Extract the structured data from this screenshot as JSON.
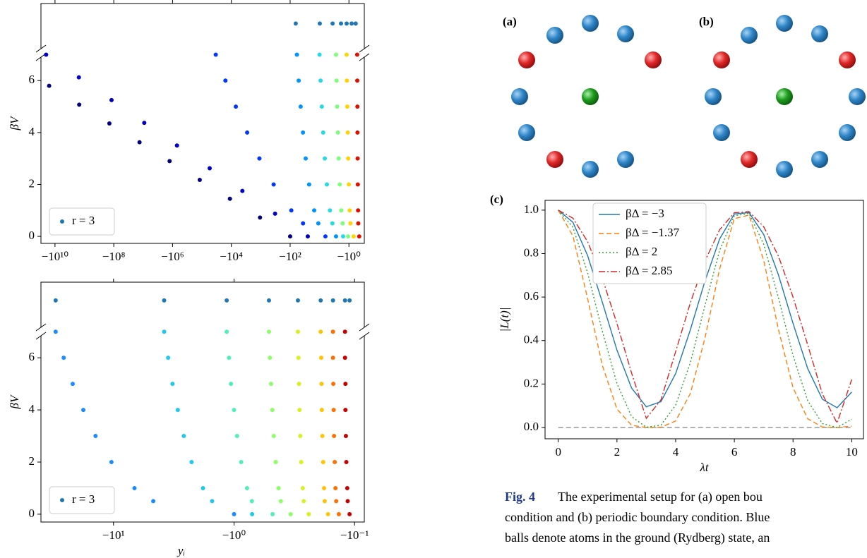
{
  "chart_data": [
    {
      "type": "scatter",
      "xscale": "log",
      "ylabel": "βV",
      "xlim": [
        -30000000000,
        -0.3
      ],
      "ylim": [
        -0.27,
        8.97
      ],
      "xticks": [
        {
          "value": -10000000000,
          "label": "−10¹⁰"
        },
        {
          "value": -100000000,
          "label": "−10⁸"
        },
        {
          "value": -1000000,
          "label": "−10⁶"
        },
        {
          "value": -10000,
          "label": "−10⁴"
        },
        {
          "value": -100,
          "label": "−10²"
        },
        {
          "value": -1,
          "label": "−10⁰"
        }
      ],
      "yticks": [
        0,
        2,
        4,
        6
      ],
      "legend": "lower left",
      "series": [
        {
          "color": "#00007f",
          "x": [
            -100,
            -1060,
            -11200,
            -119000,
            -1260000,
            -13300000,
            -141000000,
            -1500000000,
            -15800000000
          ],
          "values": [
            0,
            0.725,
            1.45,
            2.175,
            2.9,
            3.625,
            4.35,
            5.075,
            5.8
          ]
        },
        {
          "color": "#0000c8",
          "x": [
            -25.1,
            -326,
            -4220,
            -54600,
            -708000,
            -9170000,
            -119000000,
            -1540000000,
            -20000000000
          ],
          "values": [
            0,
            0.875,
            1.75,
            2.625,
            3.5,
            4.375,
            5.25,
            6.125,
            7
          ]
        },
        {
          "color": "#0038ff",
          "x": [
            -6.31,
            -36.4,
            -91.2,
            -364,
            -1110,
            -2900,
            -7030,
            -15900,
            -33900
          ],
          "values": [
            0,
            0.5,
            1,
            2,
            3,
            4,
            5,
            6,
            7
          ]
        },
        {
          "color": "#0094ff",
          "x": [
            -2.75,
            -11,
            -15.2,
            -22.6,
            -29.6,
            -36.6,
            -43.9,
            -51.3,
            -58.9
          ],
          "values": [
            0,
            0.5,
            1,
            2,
            3,
            4,
            5,
            6,
            7
          ]
        },
        {
          "color": "#26d9e6",
          "x": [
            -1.58,
            -3.65,
            -4.43,
            -5.62,
            -6.62,
            -7.52,
            -8.38,
            -9.2,
            -10
          ],
          "values": [
            0,
            0.5,
            1,
            2,
            3,
            4,
            5,
            6,
            7
          ]
        },
        {
          "color": "#7dff7a",
          "x": [
            -1.07,
            -1.64,
            -1.82,
            -2.05,
            -2.23,
            -2.38,
            -2.52,
            -2.64,
            -2.75
          ],
          "values": [
            0,
            0.5,
            1,
            2,
            3,
            4,
            5,
            6,
            7
          ]
        },
        {
          "color": "#ffd400",
          "x": [
            -0.692,
            -0.889,
            -0.942,
            -1.01,
            -1.06,
            -1.1,
            -1.14,
            -1.17,
            -1.2
          ],
          "values": [
            0,
            0.5,
            1,
            2,
            3,
            4,
            5,
            6,
            7
          ]
        },
        {
          "color": "#e01000",
          "x": [
            -0.447,
            -0.481,
            -0.489,
            -0.499,
            -0.506,
            -0.512,
            -0.516,
            -0.521,
            -0.525
          ],
          "values": [
            0,
            0.5,
            1,
            2,
            3,
            4,
            5,
            6,
            7
          ]
        },
        {
          "name": "r = 3",
          "color": "#1f77b4",
          "x": [
            -64.6,
            -9.8,
            -3.6,
            -1.86,
            -1.2,
            -0.81,
            -0.59
          ],
          "values": [
            8.2,
            8.2,
            8.2,
            8.2,
            8.2,
            8.2,
            8.2
          ]
        }
      ]
    },
    {
      "type": "scatter",
      "xscale": "log",
      "xlabel": "yᵢ",
      "ylabel": "βV",
      "xlim": [
        -40,
        -0.083
      ],
      "ylim": [
        -0.3,
        8.9
      ],
      "xticks": [
        {
          "value": -10,
          "label": "−10¹"
        },
        {
          "value": -1,
          "label": "−10⁰"
        },
        {
          "value": -0.1,
          "label": "−10⁻¹"
        }
      ],
      "yticks": [
        0,
        2,
        4,
        6
      ],
      "legend": "lower left",
      "series": [
        {
          "color": "#1a8cff",
          "x": [
            -1,
            -4.68,
            -6.7,
            -10.4,
            -14.1,
            -17.8,
            -21.8,
            -25.9,
            -30.2
          ],
          "values": [
            0,
            0.5,
            1,
            2,
            3,
            4,
            5,
            6,
            7
          ]
        },
        {
          "color": "#1ec8f0",
          "x": [
            -0.708,
            -1.52,
            -1.81,
            -2.25,
            -2.61,
            -2.93,
            -3.24,
            -3.52,
            -3.8
          ],
          "values": [
            0,
            0.5,
            1,
            2,
            3,
            4,
            5,
            6,
            7
          ]
        },
        {
          "color": "#4ff0b8",
          "x": [
            -0.479,
            -0.711,
            -0.78,
            -0.873,
            -0.944,
            -1,
            -1.06,
            -1.1,
            -1.15
          ],
          "values": [
            0,
            0.5,
            1,
            2,
            3,
            4,
            5,
            6,
            7
          ]
        },
        {
          "color": "#8cff66",
          "x": [
            -0.339,
            -0.409,
            -0.427,
            -0.451,
            -0.468,
            -0.481,
            -0.493,
            -0.504,
            -0.513
          ],
          "values": [
            0,
            0.5,
            1,
            2,
            3,
            4,
            5,
            6,
            7
          ]
        },
        {
          "color": "#d8f020",
          "x": [
            -0.24,
            -0.264,
            -0.269,
            -0.277,
            -0.282,
            -0.286,
            -0.289,
            -0.292,
            -0.295
          ],
          "values": [
            0,
            0.5,
            1,
            2,
            3,
            4,
            5,
            6,
            7
          ]
        },
        {
          "color": "#ffc400",
          "x": [
            -0.166,
            -0.177,
            -0.179,
            -0.182,
            -0.185,
            -0.187,
            -0.188,
            -0.189,
            -0.191
          ],
          "values": [
            0,
            0.5,
            1,
            2,
            3,
            4,
            5,
            6,
            7
          ]
        },
        {
          "color": "#ff7000",
          "x": [
            -0.135,
            -0.142,
            -0.144,
            -0.146,
            -0.148,
            -0.149,
            -0.15,
            -0.151,
            -0.151
          ],
          "values": [
            0,
            0.5,
            1,
            2,
            3,
            4,
            5,
            6,
            7
          ]
        },
        {
          "color": "#c80000",
          "x": [
            -0.11,
            -0.114,
            -0.115,
            -0.117,
            -0.118,
            -0.119,
            -0.119,
            -0.12,
            -0.12
          ],
          "values": [
            0,
            0.5,
            1,
            2,
            3,
            4,
            5,
            6,
            7
          ]
        },
        {
          "name": "r = 3",
          "color": "#1f77b4",
          "x": [
            -30.2,
            -3.8,
            -1.15,
            -0.513,
            -0.295,
            -0.191,
            -0.151,
            -0.12,
            -0.11
          ],
          "values": [
            8.2,
            8.2,
            8.2,
            8.2,
            8.2,
            8.2,
            8.2,
            8.2,
            8.2
          ]
        }
      ]
    },
    {
      "type": "line",
      "panel_label": "(c)",
      "xlabel": "λt",
      "ylabel": "|L(t)|",
      "xlim": [
        -0.45,
        10.4
      ],
      "ylim": [
        -0.052,
        1.045
      ],
      "xticks": [
        0,
        2,
        4,
        6,
        8,
        10
      ],
      "yticks": [
        {
          "value": 0,
          "label": "0.0"
        },
        0.2,
        0.4,
        0.6,
        0.8,
        {
          "value": 1,
          "label": "1.0"
        }
      ],
      "hline": 0,
      "legend": "upper center",
      "x": [
        0,
        0.5,
        1,
        1.5,
        2,
        2.5,
        3,
        3.5,
        4,
        4.5,
        5,
        5.5,
        6,
        6.5,
        7,
        7.5,
        8,
        8.5,
        9,
        9.5,
        10
      ],
      "series": [
        {
          "name": "βΔ = −3",
          "color": "#1f77b4",
          "linestyle": "solid",
          "values": [
            1,
            0.944,
            0.791,
            0.577,
            0.356,
            0.181,
            0.095,
            0.119,
            0.248,
            0.449,
            0.674,
            0.868,
            0.982,
            0.989,
            0.888,
            0.703,
            0.479,
            0.271,
            0.13,
            0.091,
            0.163
          ]
        },
        {
          "name": "βΔ = −1.37",
          "color": "#ff7f0e",
          "linestyle": "dashed",
          "values": [
            1,
            0.881,
            0.593,
            0.287,
            0.085,
            0.0099,
            0,
            0.001,
            0.03,
            0.156,
            0.412,
            0.73,
            0.961,
            0.977,
            0.769,
            0.453,
            0.183,
            0.04,
            0.002,
            0,
            0.006
          ]
        },
        {
          "name": "βΔ = 2",
          "color": "#2ca02c",
          "linestyle": "dotted",
          "values": [
            1,
            0.921,
            0.712,
            0.444,
            0.202,
            0.05,
            0.001,
            0.011,
            0.103,
            0.298,
            0.562,
            0.815,
            0.974,
            0.985,
            0.843,
            0.598,
            0.331,
            0.123,
            0.018,
            0,
            0.038
          ]
        },
        {
          "name": "βΔ = 2.85",
          "color": "#d62728",
          "linestyle": "dashdot",
          "values": [
            1,
            0.963,
            0.855,
            0.687,
            0.478,
            0.25,
            0.042,
            0.127,
            0.349,
            0.573,
            0.766,
            0.91,
            0.988,
            0.993,
            0.924,
            0.789,
            0.6,
            0.38,
            0.154,
            0.02,
            0.221
          ]
        }
      ]
    }
  ],
  "diagram": {
    "labels": [
      "(a)",
      "(b)"
    ]
  },
  "caption": {
    "label": "Fig. 4",
    "lines": [
      "The experimental setup for (a) open bou",
      "condition and (b) periodic boundary condition. Blue",
      "balls denote atoms in the ground (Rydberg) state, an"
    ]
  }
}
